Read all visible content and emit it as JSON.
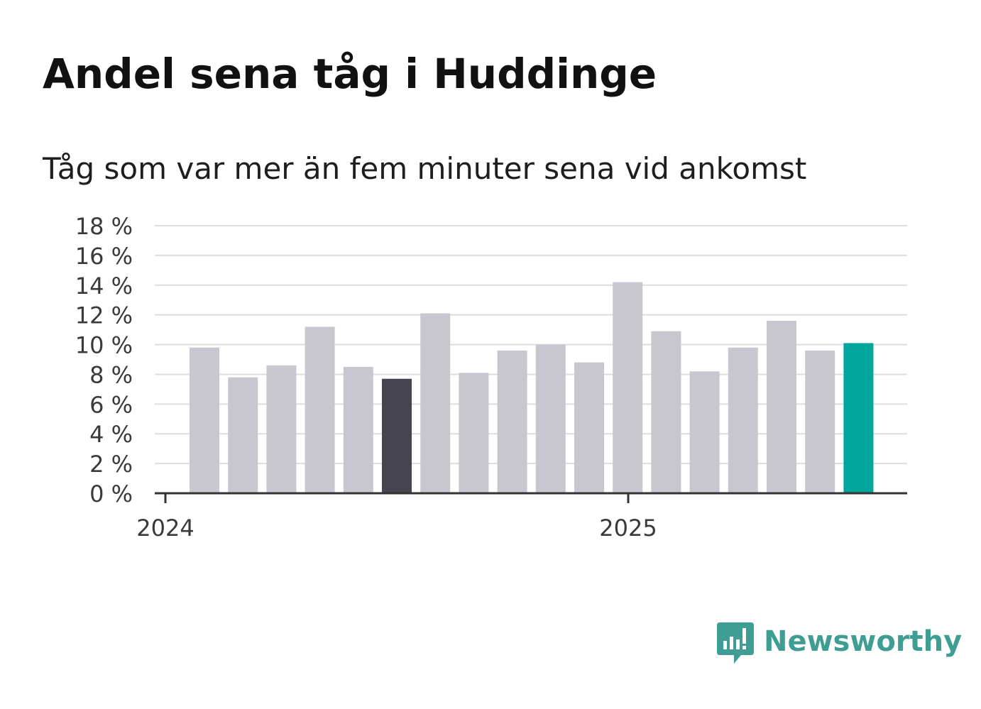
{
  "header": {
    "title": "Andel sena tåg i Huddinge",
    "subtitle": "Tåg som var mer än fem minuter sena vid ankomst"
  },
  "chart_data": {
    "type": "bar",
    "title": "Andel sena tåg i Huddinge",
    "subtitle": "Tåg som var mer än fem minuter sena vid ankomst",
    "xlabel": "",
    "ylabel": "",
    "ylim": [
      0,
      18
    ],
    "yticks": [
      0,
      2,
      4,
      6,
      8,
      10,
      12,
      14,
      16,
      18
    ],
    "ytick_labels": [
      "0 %",
      "2 %",
      "4 %",
      "6 %",
      "8 %",
      "10 %",
      "12 %",
      "14 %",
      "16 %",
      "18 %"
    ],
    "x_axis_labels": [
      "2024",
      "2025"
    ],
    "grid": true,
    "categories": [
      "2024-01",
      "2024-02",
      "2024-03",
      "2024-04",
      "2024-05",
      "2024-06",
      "2024-07",
      "2024-08",
      "2024-09",
      "2024-10",
      "2024-11",
      "2024-12",
      "2025-01",
      "2025-02",
      "2025-03",
      "2025-04",
      "2025-05",
      "2025-06"
    ],
    "values": [
      9.8,
      7.8,
      8.6,
      11.2,
      8.5,
      7.7,
      12.1,
      8.1,
      9.6,
      10.0,
      8.8,
      14.2,
      10.9,
      8.2,
      9.8,
      11.6,
      9.6,
      10.1
    ],
    "colors": {
      "default": "#c8c7cf",
      "highlight_previous_year": "#45444f",
      "highlight_latest": "#00a59b",
      "grid": "#dddddd",
      "axis": "#333333"
    },
    "highlight_previous_year_index": 5,
    "highlight_latest_index": 17
  },
  "brand": {
    "name": "Newsworthy",
    "color": "#3f9e93"
  }
}
